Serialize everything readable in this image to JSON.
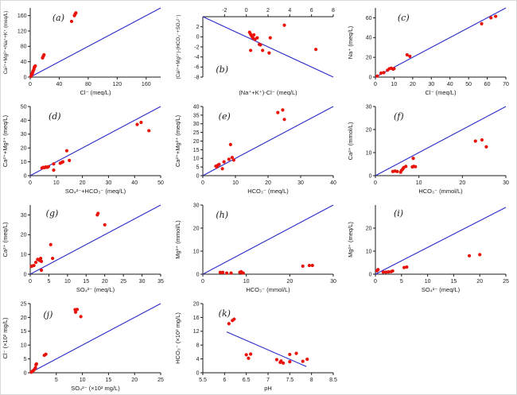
{
  "figure": {
    "title": "",
    "background": "#ffffff",
    "grid": "off",
    "legend": "none",
    "panel_count": 11
  },
  "style": {
    "point_color": "#e81209",
    "line_color": "#2a2ac8",
    "axis_color": "#1a1a1a",
    "label_color": "#1a1a1a"
  },
  "chart_data": [
    {
      "id": "a",
      "type": "scatter",
      "label": "(a)",
      "xlabel": "Cl⁻ (meq/L)",
      "ylabel": "Ca²⁺+Mg²⁺+Na⁺+K⁺ (meq/L)",
      "xlim": [
        0,
        180
      ],
      "ylim": [
        0,
        180
      ],
      "xticks": [
        0,
        40,
        80,
        120,
        160
      ],
      "yticks": [
        0,
        40,
        80,
        120,
        160
      ],
      "x_axis_position": "bottom",
      "label_pos": [
        0.17,
        0.08
      ],
      "reference_line": [
        [
          0,
          0
        ],
        [
          180,
          180
        ]
      ],
      "points": [
        [
          1,
          2
        ],
        [
          1.5,
          4
        ],
        [
          2,
          6
        ],
        [
          2.5,
          8
        ],
        [
          3,
          10
        ],
        [
          3.5,
          13
        ],
        [
          4,
          16
        ],
        [
          5,
          20
        ],
        [
          5.5,
          24
        ],
        [
          6,
          27
        ],
        [
          7,
          29
        ],
        [
          17,
          50
        ],
        [
          18,
          54
        ],
        [
          19,
          58
        ],
        [
          57,
          145
        ],
        [
          61,
          160
        ],
        [
          62,
          164
        ],
        [
          63,
          167
        ]
      ]
    },
    {
      "id": "b",
      "type": "scatter",
      "label": "(b)",
      "xlabel": "(Na⁺+K⁺)-Cl⁻ (meq/L)",
      "ylabel": "(Ca²⁺+Mg²⁺)-(HCO₃⁻+SO₄²⁻)",
      "xlim": [
        -4,
        8
      ],
      "ylim": [
        -8,
        4
      ],
      "xticks": [
        -2,
        0,
        2,
        4,
        6,
        8
      ],
      "yticks": [
        -8,
        -6,
        -4,
        -2,
        0,
        2
      ],
      "x_axis_position": "top",
      "label_pos": [
        0.1,
        0.8
      ],
      "reference_line": [
        [
          -4,
          4
        ],
        [
          8,
          -8
        ]
      ],
      "points": [
        [
          0.3,
          0.9
        ],
        [
          0.4,
          0.5
        ],
        [
          0.5,
          0.1
        ],
        [
          0.6,
          -0.2
        ],
        [
          0.7,
          0.4
        ],
        [
          0.8,
          -0.5
        ],
        [
          1.0,
          -0.2
        ],
        [
          1.2,
          -1.5
        ],
        [
          1.3,
          -1.6
        ],
        [
          2.2,
          -0.2
        ],
        [
          3.5,
          2.3
        ],
        [
          0.4,
          -2.7
        ],
        [
          1.5,
          -2.7
        ],
        [
          2.1,
          -3.2
        ],
        [
          6.4,
          -2.5
        ]
      ]
    },
    {
      "id": "c",
      "type": "scatter",
      "label": "(c)",
      "xlabel": "Cl⁻ (meq/L)",
      "ylabel": "Na⁺ (meq/L)",
      "xlim": [
        0,
        70
      ],
      "ylim": [
        0,
        70
      ],
      "xticks": [
        0,
        10,
        20,
        30,
        40,
        50,
        60,
        70
      ],
      "yticks": [
        0,
        20,
        40,
        60
      ],
      "x_axis_position": "bottom",
      "label_pos": [
        0.17,
        0.08
      ],
      "reference_line": [
        [
          0,
          0
        ],
        [
          70,
          70
        ]
      ],
      "points": [
        [
          1,
          1
        ],
        [
          3,
          4
        ],
        [
          4.5,
          4.5
        ],
        [
          6.5,
          7
        ],
        [
          7.5,
          8.5
        ],
        [
          8.5,
          9
        ],
        [
          9.5,
          8
        ],
        [
          10,
          8.5
        ],
        [
          17,
          22.5
        ],
        [
          18.5,
          21
        ],
        [
          57,
          54
        ],
        [
          62,
          60
        ],
        [
          64.5,
          61.5
        ]
      ]
    },
    {
      "id": "d",
      "type": "scatter",
      "label": "(d)",
      "xlabel": "SO₄²⁻+HCO₃⁻ (meq/L)",
      "ylabel": "Ca²⁺+Mg²⁺ (meq/L)",
      "xlim": [
        0,
        50
      ],
      "ylim": [
        0,
        50
      ],
      "xticks": [
        0,
        10,
        20,
        30,
        40,
        50
      ],
      "yticks": [
        0,
        10,
        20,
        30,
        40,
        50
      ],
      "x_axis_position": "bottom",
      "label_pos": [
        0.14,
        0.08
      ],
      "reference_line": [
        [
          0,
          0
        ],
        [
          50,
          50
        ]
      ],
      "points": [
        [
          4.5,
          5.5
        ],
        [
          5,
          6
        ],
        [
          5.5,
          5.8
        ],
        [
          6,
          6.3
        ],
        [
          6.5,
          6
        ],
        [
          7,
          6.5
        ],
        [
          9,
          8.5
        ],
        [
          9,
          4
        ],
        [
          11.5,
          9
        ],
        [
          12,
          9.5
        ],
        [
          12.5,
          10
        ],
        [
          14,
          18
        ],
        [
          15,
          11
        ],
        [
          41,
          37
        ],
        [
          42.5,
          38.5
        ],
        [
          45.5,
          32.5
        ]
      ]
    },
    {
      "id": "e",
      "type": "scatter",
      "label": "(e)",
      "xlabel": "HCO₃⁻ (meq/L)",
      "ylabel": "Ca²⁺+Mg²⁺ (meq/L)",
      "xlim": [
        0,
        40
      ],
      "ylim": [
        0,
        40
      ],
      "xticks": [
        0,
        10,
        20,
        30,
        40
      ],
      "yticks": [
        0,
        5,
        10,
        15,
        20,
        25,
        30,
        35,
        40
      ],
      "x_axis_position": "bottom",
      "label_pos": [
        0.12,
        0.08
      ],
      "reference_line": [
        [
          0,
          0
        ],
        [
          40,
          40
        ]
      ],
      "points": [
        [
          4,
          5.5
        ],
        [
          4.3,
          5
        ],
        [
          4.6,
          6
        ],
        [
          5,
          6.5
        ],
        [
          6,
          4
        ],
        [
          6.5,
          8
        ],
        [
          8,
          9.5
        ],
        [
          8.5,
          18
        ],
        [
          9,
          10.5
        ],
        [
          9.5,
          9
        ],
        [
          23,
          36.5
        ],
        [
          24.5,
          38
        ],
        [
          25,
          32.5
        ]
      ]
    },
    {
      "id": "f",
      "type": "scatter",
      "label": "(f)",
      "xlabel": "HCO₃⁻ (mmol/L)",
      "ylabel": "Ca²⁺ (mmol/L)",
      "xlim": [
        0,
        30
      ],
      "ylim": [
        0,
        30
      ],
      "xticks": [
        0,
        10,
        20,
        30
      ],
      "yticks": [
        0,
        10,
        20,
        30
      ],
      "x_axis_position": "bottom",
      "label_pos": [
        0.14,
        0.08
      ],
      "reference_line": [
        [
          0,
          0
        ],
        [
          30,
          30
        ]
      ],
      "points": [
        [
          4,
          1.8
        ],
        [
          4.5,
          2
        ],
        [
          5,
          1.8
        ],
        [
          5.8,
          1.5
        ],
        [
          6,
          2.3
        ],
        [
          6.3,
          2.9
        ],
        [
          6.5,
          3.5
        ],
        [
          7,
          4
        ],
        [
          8.5,
          3.8
        ],
        [
          8.8,
          4
        ],
        [
          9.2,
          3.9
        ],
        [
          8.7,
          7.5
        ],
        [
          23,
          15
        ],
        [
          24.5,
          15.5
        ],
        [
          25.5,
          12.5
        ]
      ]
    },
    {
      "id": "g",
      "type": "scatter",
      "label": "(g)",
      "xlabel": "SO₄²⁻ (meq/L)",
      "ylabel": "Ca²⁺ (meq/L)",
      "xlim": [
        0,
        35
      ],
      "ylim": [
        0,
        35
      ],
      "xticks": [
        0,
        5,
        10,
        15,
        20,
        25,
        30,
        35
      ],
      "yticks": [
        0,
        10,
        20,
        30
      ],
      "x_axis_position": "bottom",
      "label_pos": [
        0.12,
        0.06
      ],
      "reference_line": [
        [
          0,
          0
        ],
        [
          35,
          35
        ]
      ],
      "points": [
        [
          0.3,
          4
        ],
        [
          0.6,
          4.2
        ],
        [
          1,
          4.4
        ],
        [
          1.5,
          6
        ],
        [
          2,
          7.5
        ],
        [
          2.5,
          7
        ],
        [
          2.8,
          8
        ],
        [
          3,
          6.5
        ],
        [
          3,
          2
        ],
        [
          5.5,
          15
        ],
        [
          6,
          8
        ],
        [
          18,
          30
        ],
        [
          18.2,
          30.8
        ],
        [
          20,
          25
        ]
      ]
    },
    {
      "id": "h",
      "type": "scatter",
      "label": "(h)",
      "xlabel": "HCO₃⁻ (mmol/L)",
      "ylabel": "Mg²⁺ (mmol/L)",
      "xlim": [
        0,
        30
      ],
      "ylim": [
        0,
        30
      ],
      "xticks": [
        0,
        10,
        20,
        30
      ],
      "yticks": [
        0,
        10,
        20,
        30
      ],
      "x_axis_position": "bottom",
      "label_pos": [
        0.1,
        0.08
      ],
      "reference_line": [
        [
          0,
          0
        ],
        [
          30,
          30
        ]
      ],
      "points": [
        [
          4,
          0.8
        ],
        [
          4.3,
          0.7
        ],
        [
          4.6,
          0.8
        ],
        [
          5.5,
          0.5
        ],
        [
          6.5,
          0.5
        ],
        [
          8.5,
          0.8
        ],
        [
          8.8,
          1.1
        ],
        [
          9,
          0.7
        ],
        [
          9.3,
          0.5
        ],
        [
          23,
          3.5
        ],
        [
          24.5,
          3.8
        ],
        [
          25.2,
          3.8
        ]
      ]
    },
    {
      "id": "i",
      "type": "scatter",
      "label": "(i)",
      "xlabel": "SO₄²⁻ (meq/L)",
      "ylabel": "Mg²⁺ (meq/L)",
      "xlim": [
        0,
        25
      ],
      "ylim": [
        0,
        30
      ],
      "xticks": [
        0,
        5,
        10,
        15,
        20,
        25
      ],
      "yticks": [
        0,
        10,
        20
      ],
      "x_axis_position": "bottom",
      "label_pos": [
        0.14,
        0.06
      ],
      "reference_line": [
        [
          0,
          0
        ],
        [
          25,
          29
        ]
      ],
      "points": [
        [
          0.3,
          1.5
        ],
        [
          0.5,
          2
        ],
        [
          1.5,
          0.9
        ],
        [
          2,
          0.9
        ],
        [
          2.5,
          1
        ],
        [
          3,
          1.1
        ],
        [
          3.3,
          1.4
        ],
        [
          5.5,
          2.9
        ],
        [
          6,
          3.1
        ],
        [
          18,
          8
        ],
        [
          20,
          8.5
        ]
      ]
    },
    {
      "id": "j",
      "type": "scatter",
      "label": "(j)",
      "xlabel": "SO₄²⁻ (×10² mg/L)",
      "ylabel": "Cl⁻ (×10² mg/L)",
      "xlim": [
        0,
        25
      ],
      "ylim": [
        0,
        25
      ],
      "xticks": [
        5,
        10,
        15,
        20,
        25
      ],
      "yticks": [
        0,
        5,
        10,
        15,
        20,
        25
      ],
      "x_axis_position": "bottom",
      "label_pos": [
        0.1,
        0.1
      ],
      "reference_line": [
        [
          0,
          0
        ],
        [
          25,
          25
        ]
      ],
      "points": [
        [
          0.2,
          0.2
        ],
        [
          0.4,
          0.5
        ],
        [
          0.6,
          0.8
        ],
        [
          0.8,
          1.2
        ],
        [
          1,
          1.8
        ],
        [
          1.1,
          2.9
        ],
        [
          1.2,
          3.2
        ],
        [
          2.7,
          6.3
        ],
        [
          3,
          6.7
        ],
        [
          8.6,
          22.8
        ],
        [
          8.7,
          21.9
        ],
        [
          9,
          22.9
        ],
        [
          9.7,
          20.3
        ]
      ]
    },
    {
      "id": "k",
      "type": "scatter",
      "label": "(k)",
      "xlabel": "pH",
      "ylabel": "HCO₃⁻ (×10² mg/L)",
      "xlim": [
        5.5,
        8.5
      ],
      "ylim": [
        0,
        20
      ],
      "xticks": [
        5.5,
        6,
        6.5,
        7,
        7.5,
        8,
        8.5
      ],
      "yticks": [
        0,
        4,
        8,
        12,
        16,
        20
      ],
      "x_axis_position": "bottom",
      "label_pos": [
        0.12,
        0.08
      ],
      "reference_line": [
        [
          6.05,
          11.8
        ],
        [
          7.88,
          1.8
        ]
      ],
      "points": [
        [
          6.1,
          14.2
        ],
        [
          6.18,
          15.1
        ],
        [
          6.22,
          15.5
        ],
        [
          6.5,
          5.2
        ],
        [
          6.55,
          4.2
        ],
        [
          6.6,
          5.4
        ],
        [
          7.2,
          3.8
        ],
        [
          7.28,
          3
        ],
        [
          7.3,
          3.4
        ],
        [
          7.35,
          2.8
        ],
        [
          7.5,
          5.3
        ],
        [
          7.5,
          3.2
        ],
        [
          7.65,
          5.6
        ],
        [
          7.8,
          3.3
        ],
        [
          7.9,
          3.9
        ]
      ]
    }
  ]
}
